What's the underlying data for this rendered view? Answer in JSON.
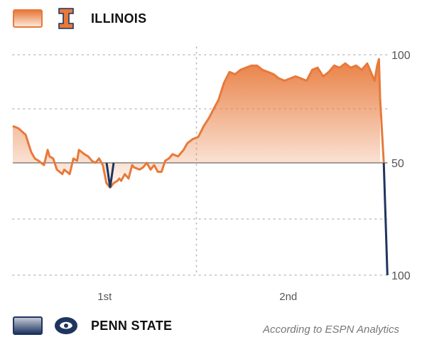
{
  "home_team": {
    "name": "ILLINOIS",
    "color": "#e8793a",
    "fill_light": "#fbe6d8",
    "logo_letter": "I",
    "logo_icon": "illinois-block-i-icon"
  },
  "away_team": {
    "name": "PENN STATE",
    "color": "#1e3560",
    "fill_light": "#c5cad6",
    "logo_icon": "penn-state-nittany-lion-icon"
  },
  "footnote": "According to ESPN Analytics",
  "chart_data": {
    "type": "area",
    "title": "",
    "xlabel": "",
    "ylabel": "",
    "x_ticks": [
      {
        "label": "1st",
        "x": 0.25
      },
      {
        "label": "2nd",
        "x": 0.75
      }
    ],
    "y_ticks": [
      "100",
      "50",
      "100"
    ],
    "xlim": [
      0,
      1
    ],
    "ylim": [
      -50,
      50
    ],
    "grid": true,
    "series": [
      {
        "values": [
          [
            0.0,
            17
          ],
          [
            0.015,
            16
          ],
          [
            0.035,
            13
          ],
          [
            0.05,
            5
          ],
          [
            0.06,
            2
          ],
          [
            0.07,
            1
          ],
          [
            0.085,
            -1
          ],
          [
            0.095,
            6
          ],
          [
            0.1,
            3
          ],
          [
            0.11,
            2
          ],
          [
            0.12,
            -3
          ],
          [
            0.135,
            -5
          ],
          [
            0.14,
            -3
          ],
          [
            0.155,
            -5
          ],
          [
            0.165,
            2
          ],
          [
            0.175,
            1
          ],
          [
            0.18,
            6
          ],
          [
            0.195,
            4
          ],
          [
            0.205,
            3
          ],
          [
            0.215,
            1
          ],
          [
            0.225,
            0
          ],
          [
            0.235,
            2
          ],
          [
            0.245,
            -1
          ],
          [
            0.255,
            -9
          ],
          [
            0.265,
            -11
          ],
          [
            0.275,
            -9
          ],
          [
            0.285,
            -8
          ],
          [
            0.29,
            -7
          ],
          [
            0.295,
            -8
          ],
          [
            0.305,
            -5
          ],
          [
            0.315,
            -7
          ],
          [
            0.325,
            -1
          ],
          [
            0.33,
            -2
          ],
          [
            0.345,
            -3
          ],
          [
            0.355,
            -2
          ],
          [
            0.365,
            0
          ],
          [
            0.375,
            -3
          ],
          [
            0.385,
            -1
          ],
          [
            0.395,
            -4
          ],
          [
            0.405,
            -4
          ],
          [
            0.415,
            1
          ],
          [
            0.425,
            2
          ],
          [
            0.435,
            4
          ],
          [
            0.45,
            3
          ],
          [
            0.465,
            6
          ],
          [
            0.475,
            9
          ],
          [
            0.49,
            11
          ],
          [
            0.505,
            12
          ],
          [
            0.52,
            17
          ],
          [
            0.535,
            21
          ],
          [
            0.55,
            26
          ],
          [
            0.56,
            29
          ],
          [
            0.575,
            37
          ],
          [
            0.59,
            42
          ],
          [
            0.605,
            41
          ],
          [
            0.62,
            43
          ],
          [
            0.635,
            44
          ],
          [
            0.65,
            45
          ],
          [
            0.665,
            45
          ],
          [
            0.68,
            43
          ],
          [
            0.695,
            42
          ],
          [
            0.71,
            41
          ],
          [
            0.725,
            39
          ],
          [
            0.74,
            38
          ],
          [
            0.755,
            39
          ],
          [
            0.77,
            40
          ],
          [
            0.785,
            39
          ],
          [
            0.8,
            38
          ],
          [
            0.815,
            43
          ],
          [
            0.83,
            44
          ],
          [
            0.845,
            40
          ],
          [
            0.86,
            42
          ],
          [
            0.875,
            45
          ],
          [
            0.89,
            44
          ],
          [
            0.905,
            46
          ],
          [
            0.92,
            44
          ],
          [
            0.935,
            45
          ],
          [
            0.95,
            43
          ],
          [
            0.965,
            46
          ],
          [
            0.975,
            42
          ],
          [
            0.985,
            38
          ],
          [
            0.992,
            45
          ],
          [
            0.997,
            48
          ],
          [
            1.0,
            30
          ]
        ],
        "end_values": [
          [
            1.0,
            30
          ],
          [
            1.01,
            0
          ],
          [
            1.02,
            -50
          ]
        ]
      }
    ]
  }
}
